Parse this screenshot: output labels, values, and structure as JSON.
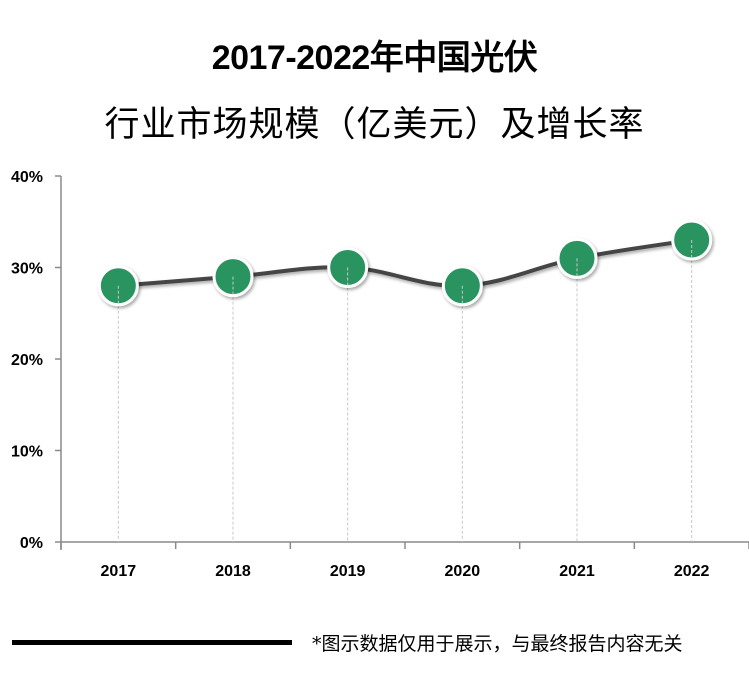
{
  "title": {
    "line1": "2017-2022年中国光伏",
    "line2": "行业市场规模（亿美元）及增长率"
  },
  "footer": {
    "note": "*图示数据仅用于展示，与最终报告内容无关"
  },
  "colors": {
    "marker": "#2a9460",
    "line": "#444444",
    "axis": "#8a8a8a",
    "dropline": "#c8c8c8"
  },
  "chart_data": {
    "type": "line",
    "title": "2017-2022年中国光伏行业市场规模（亿美元）及增长率",
    "categories": [
      "2017",
      "2018",
      "2019",
      "2020",
      "2021",
      "2022"
    ],
    "series": [
      {
        "name": "增长率",
        "values": [
          28,
          29,
          30,
          28,
          31,
          33
        ]
      }
    ],
    "xlabel": "",
    "ylabel": "",
    "ylim": [
      0,
      40
    ],
    "yticks": [
      "0%",
      "10%",
      "20%",
      "30%",
      "40%"
    ],
    "grid": false,
    "droplines": true,
    "legend": "none"
  }
}
